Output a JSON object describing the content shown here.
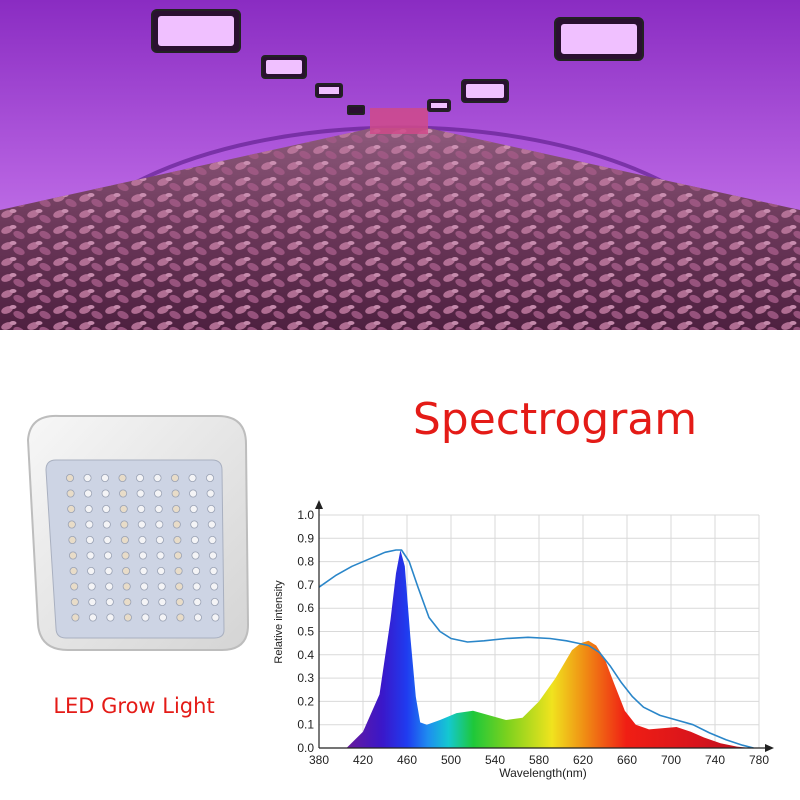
{
  "header": {
    "title": "Spectrogram"
  },
  "product": {
    "label": "LED Grow Light"
  },
  "icons": {
    "hero": "greenhouse-photo",
    "product": "led-panel-photo"
  },
  "colors": {
    "title": "#e41b17",
    "envelope": "#2a86c9",
    "grid": "#d9d9d9"
  },
  "chart_data": {
    "type": "area",
    "title": "",
    "xlabel": "Wavelength(nm)",
    "ylabel": "Relative intensity",
    "xlim": [
      380,
      780
    ],
    "ylim": [
      0,
      1.0
    ],
    "x_ticks": [
      380,
      420,
      460,
      500,
      540,
      580,
      620,
      660,
      700,
      740,
      780
    ],
    "y_ticks": [
      0,
      0.1,
      0.2,
      0.3,
      0.4,
      0.5,
      0.6,
      0.7,
      0.8,
      0.9,
      1.0
    ],
    "grid": true,
    "series": [
      {
        "kind": "area",
        "x": [
          405,
          420,
          435,
          445,
          450,
          454,
          458,
          463,
          468,
          472,
          478,
          490,
          505,
          520,
          535,
          550,
          565,
          580,
          595,
          610,
          618,
          625,
          632,
          640,
          648,
          658,
          668,
          680,
          692,
          705,
          718,
          730,
          745,
          760,
          772
        ],
        "y": [
          0.0,
          0.07,
          0.23,
          0.55,
          0.75,
          0.85,
          0.78,
          0.48,
          0.22,
          0.11,
          0.1,
          0.12,
          0.15,
          0.16,
          0.14,
          0.12,
          0.13,
          0.2,
          0.3,
          0.42,
          0.45,
          0.46,
          0.44,
          0.38,
          0.28,
          0.16,
          0.1,
          0.08,
          0.085,
          0.09,
          0.07,
          0.045,
          0.02,
          0.006,
          0.0
        ]
      },
      {
        "kind": "line",
        "x": [
          380,
          395,
          410,
          425,
          440,
          450,
          455,
          462,
          470,
          480,
          490,
          500,
          515,
          530,
          550,
          570,
          590,
          605,
          615,
          625,
          635,
          645,
          655,
          665,
          675,
          690,
          705,
          720,
          735,
          750,
          765,
          775
        ],
        "y": [
          0.69,
          0.74,
          0.78,
          0.81,
          0.84,
          0.85,
          0.85,
          0.8,
          0.69,
          0.56,
          0.5,
          0.47,
          0.455,
          0.46,
          0.47,
          0.475,
          0.47,
          0.46,
          0.45,
          0.44,
          0.41,
          0.35,
          0.28,
          0.22,
          0.175,
          0.14,
          0.12,
          0.1,
          0.065,
          0.035,
          0.012,
          0.0
        ]
      }
    ]
  }
}
